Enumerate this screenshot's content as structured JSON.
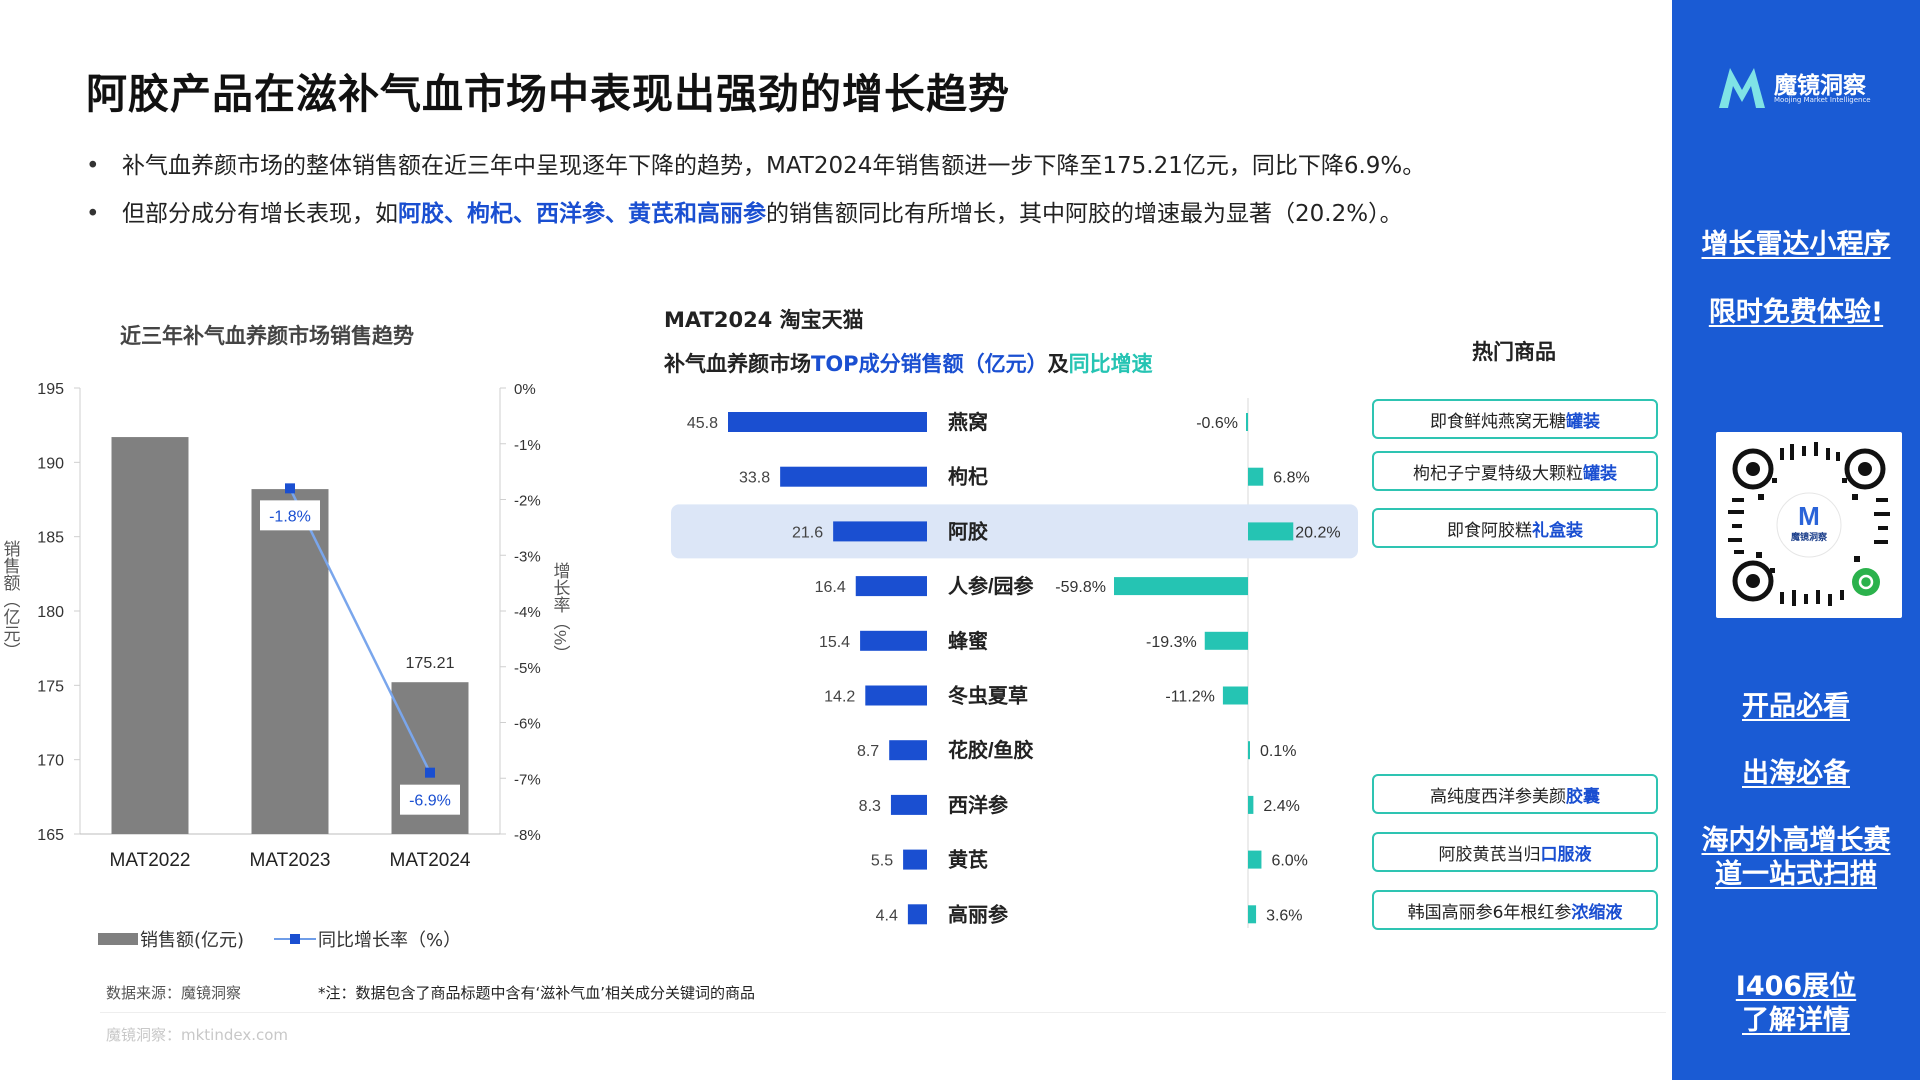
{
  "header": {
    "title": "阿胶产品在滋补气血市场中表现出强劲的增长趋势",
    "bullets": [
      {
        "text": "补气血养颜市场的整体销售额在近三年中呈现逐年下降的趋势，MAT2024年销售额进一步下降至175.21亿元，同比下降6.9%。"
      },
      {
        "pre": "但部分成分有增长表现，如",
        "hl": "阿胶、枸杞、西洋参、黄芪和高丽参",
        "post": "的销售额同比有所增长，其中阿胶的增速最为显著（20.2%）。"
      }
    ]
  },
  "left_chart": {
    "title": "近三年补气血养颜市场销售趋势"
  },
  "right_chart": {
    "subtitle": "MAT2024 淘宝天猫",
    "title_pre": "补气血养颜市场",
    "title_blue": "TOP成分销售额（亿元）",
    "title_mid": "及",
    "title_teal": "同比增速"
  },
  "legend": {
    "bar_label": "销售额(亿元)",
    "line_label": "同比增长率（%）"
  },
  "products": {
    "heading": "热门商品",
    "items": [
      {
        "pre": "即食鲜炖燕窝无糖",
        "hl": "罐装"
      },
      {
        "pre": "枸杞子宁夏特级大颗粒",
        "hl": "罐装"
      },
      {
        "pre": "即食阿胶糕",
        "hl": "礼盒装"
      },
      {
        "pre": "高纯度西洋参美颜",
        "hl": "胶囊"
      },
      {
        "pre": "阿胶黄芪当归",
        "hl": "口服液"
      },
      {
        "pre": "韩国高丽参6年根红参",
        "hl": "浓缩液"
      }
    ]
  },
  "footer": {
    "source": "数据来源：魔镜洞察",
    "note": "*注：数据包含了商品标题中含有‘滋补气血’相关成分关键词的商品",
    "site": "魔镜洞察：mktindex.com"
  },
  "sidebar": {
    "logo_name": "魔镜洞察",
    "logo_sub": "Moojing Market Intelligence",
    "logo_letter": "M",
    "qr_label": "魔镜洞察",
    "links": [
      "增长雷达小程序",
      "限时免费体验!",
      "开品必看",
      "出海必备",
      "海内外高增长赛道一站式扫描",
      "I406展位了解详情"
    ]
  },
  "colors": {
    "accent_blue": "#1a4fd1",
    "teal": "#25c4b3",
    "bar_gray": "#808080",
    "sidebar_blue": "#1a5bd4",
    "highlight_row": "#dce6f7"
  },
  "chart_data": [
    {
      "type": "bar",
      "title": "近三年补气血养颜市场销售趋势",
      "categories": [
        "MAT2022",
        "MAT2023",
        "MAT2024"
      ],
      "series": [
        {
          "name": "销售额(亿元)",
          "type": "bar",
          "axis": "left",
          "values": [
            191.7,
            188.2,
            175.21
          ]
        },
        {
          "name": "同比增长率（%）",
          "type": "line",
          "axis": "right",
          "values": [
            null,
            -1.8,
            -6.9
          ]
        }
      ],
      "data_labels": [
        null,
        "-1.8%",
        "175.21",
        "-6.9%"
      ],
      "ylabel": "销售额（亿元）",
      "ylim": [
        165,
        195
      ],
      "yticks": [
        "195",
        "190",
        "185",
        "180",
        "175",
        "170",
        "165"
      ],
      "y2label": "增长率（%）",
      "y2lim": [
        -8,
        0
      ],
      "y2ticks": [
        "0%",
        "-1%",
        "-2%",
        "-3%",
        "-4%",
        "-5%",
        "-6%",
        "-7%",
        "-8%"
      ]
    },
    {
      "type": "bar",
      "title": "补气血养颜市场TOP成分销售额（亿元）及同比增速",
      "categories": [
        "燕窝",
        "枸杞",
        "阿胶",
        "人参/园参",
        "蜂蜜",
        "冬虫夏草",
        "花胶/鱼胶",
        "西洋参",
        "黄芪",
        "高丽参"
      ],
      "series": [
        {
          "name": "销售额（亿元）",
          "values": [
            45.8,
            33.8,
            21.6,
            16.4,
            15.4,
            14.2,
            8.7,
            8.3,
            5.5,
            4.4
          ],
          "labels": [
            "45.8",
            "33.8",
            "21.6",
            "16.4",
            "15.4",
            "14.2",
            "8.7",
            "8.3",
            "5.5",
            "4.4"
          ]
        },
        {
          "name": "同比增速（%）",
          "values": [
            -0.6,
            6.8,
            20.2,
            -59.8,
            -19.3,
            -11.2,
            0.1,
            2.4,
            6.0,
            3.6
          ],
          "labels": [
            "-0.6%",
            "6.8%",
            "20.2%",
            "-59.8%",
            "-19.3%",
            "-11.2%",
            "0.1%",
            "2.4%",
            "6.0%",
            "3.6%"
          ]
        }
      ],
      "highlight": "阿胶"
    }
  ]
}
